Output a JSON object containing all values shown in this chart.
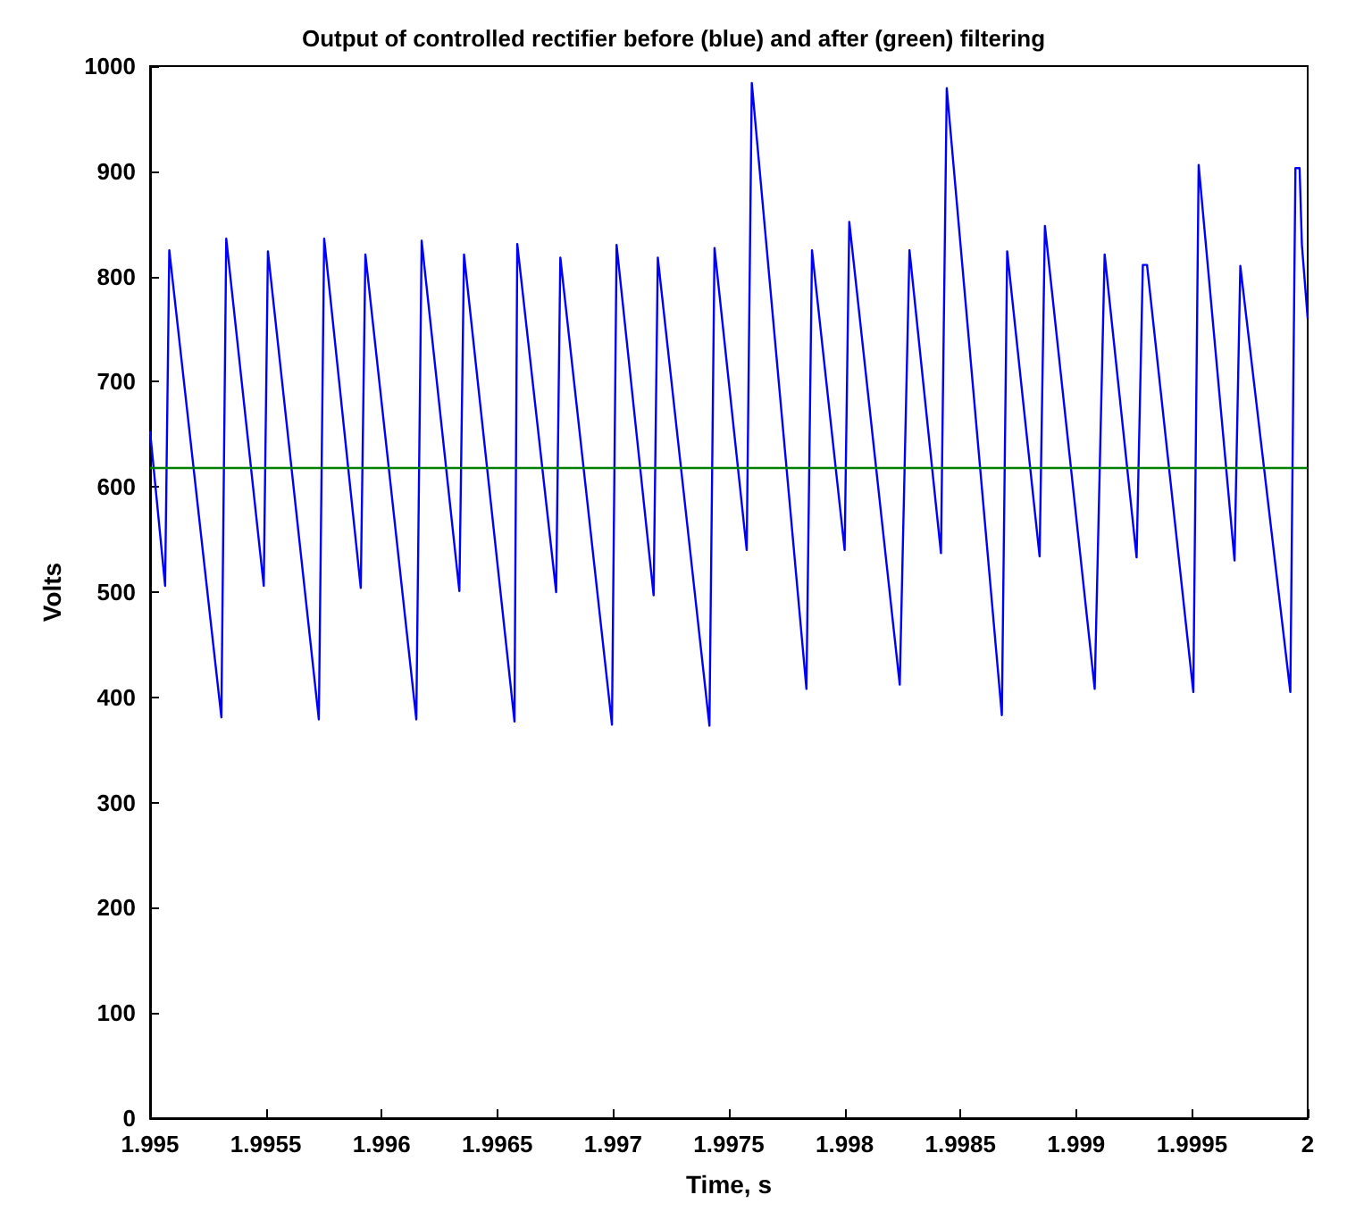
{
  "chart_data": {
    "type": "line",
    "title": "Output of controlled rectifier before (blue) and after (green) filtering",
    "xlabel": "Time, s",
    "ylabel": "Volts",
    "xlim": [
      1.995,
      2
    ],
    "xticks": [
      1.995,
      1.9955,
      1.996,
      1.9965,
      1.997,
      1.9975,
      1.998,
      1.9985,
      1.999,
      1.9995,
      2
    ],
    "ylim": [
      0,
      1000
    ],
    "yticks": [
      0,
      100,
      200,
      300,
      400,
      500,
      600,
      700,
      800,
      900,
      1000
    ],
    "grid": false,
    "marker": "none",
    "line_style": "solid",
    "series": [
      {
        "color": "#0000ff",
        "x": [
          1.995,
          1.995065,
          1.995083,
          1.995308,
          1.995329,
          1.995491,
          1.995509,
          1.995729,
          1.995752,
          1.99591,
          1.99593,
          1.99615,
          1.996173,
          1.996336,
          1.996356,
          1.996574,
          1.996586,
          1.996754,
          1.996772,
          1.996995,
          1.997015,
          1.997175,
          1.997193,
          1.997416,
          1.997438,
          1.997577,
          1.997599,
          1.997835,
          1.997859,
          1.998,
          1.99802,
          1.998238,
          1.99828,
          1.998416,
          1.998441,
          1.998679,
          1.998702,
          1.998842,
          1.998865,
          1.99908,
          1.999123,
          1.999261,
          1.999288,
          1.999306,
          1.999506,
          1.999529,
          1.999684,
          1.999709,
          1.999925,
          1.999947,
          1.999965,
          1.999975,
          2
        ],
        "values": [
          653,
          506,
          825,
          381,
          836,
          506,
          824,
          379,
          836,
          504,
          821,
          379,
          834,
          501,
          821,
          377,
          831,
          500,
          818,
          374,
          830,
          497,
          818,
          373,
          827,
          540,
          984,
          408,
          825,
          540,
          852,
          412,
          825,
          537,
          979,
          383,
          824,
          534,
          848,
          408,
          821,
          533,
          811,
          811,
          405,
          906,
          530,
          810,
          405,
          903,
          903,
          830,
          760
        ]
      },
      {
        "color": "#008000",
        "x": [
          1.995,
          2
        ],
        "values": [
          618,
          618
        ]
      }
    ]
  }
}
